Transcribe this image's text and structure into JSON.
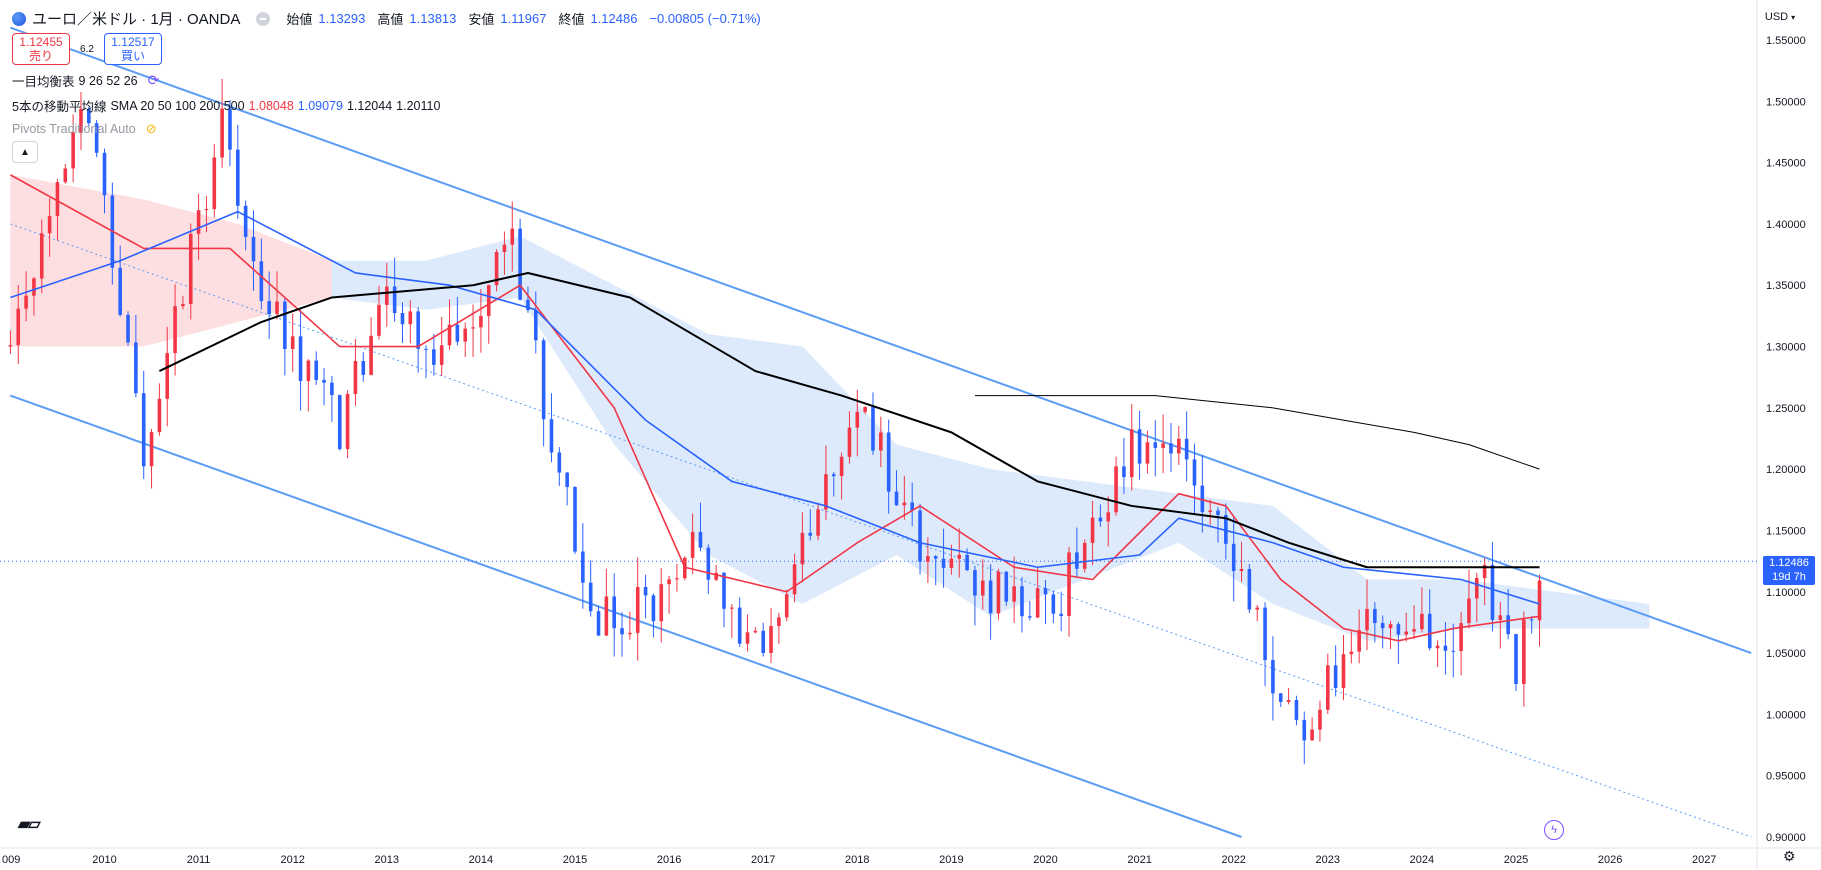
{
  "header": {
    "symbol_title": "ユーロ／米ドル · 1月 · OANDA",
    "ohlc": [
      {
        "label": "始値",
        "value": "1.13293"
      },
      {
        "label": "高値",
        "value": "1.13813"
      },
      {
        "label": "安値",
        "value": "1.11967"
      },
      {
        "label": "終値",
        "value": "1.12486"
      }
    ],
    "change": "−0.00805 (−0.71%)"
  },
  "trade": {
    "sell_price": "1.12455",
    "sell_label": "売り",
    "spread": "6.2",
    "buy_price": "1.12517",
    "buy_label": "買い"
  },
  "indicators": {
    "ichimoku_label": "一目均衡表",
    "ichimoku_params": "9 26 52 26",
    "ma_label": "5本の移動平均線",
    "ma_params": "SMA 20 50 100 200 500",
    "ma_values": [
      "1.08048",
      "1.09079",
      "1.12044",
      "1.20110"
    ],
    "pivots_label": "Pivots Traditional Auto"
  },
  "price_axis": {
    "currency": "USD",
    "last_price": "1.12486",
    "countdown": "19d 7h"
  },
  "colors": {
    "up": "#f23645",
    "down": "#2962ff",
    "sma20": "#f23645",
    "sma50": "#2962ff",
    "sma100": "#000000",
    "sma200": "#000000",
    "channel": "#5b9cf6",
    "kumo_bull": "#fdd9dc",
    "kumo_bear": "#d7e6fb"
  },
  "chart_data": {
    "type": "candlestick",
    "timeframe": "1M",
    "ylim": [
      0.9,
      1.56
    ],
    "yticks": [
      "1.55000",
      "1.50000",
      "1.45000",
      "1.40000",
      "1.35000",
      "1.30000",
      "1.25000",
      "1.20000",
      "1.15000",
      "1.10000",
      "1.05000",
      "1.00000",
      "0.95000",
      "0.90000"
    ],
    "xticks": [
      "009",
      "2010",
      "2011",
      "2012",
      "2013",
      "2014",
      "2015",
      "2016",
      "2017",
      "2018",
      "2019",
      "2020",
      "2021",
      "2022",
      "2023",
      "2024",
      "2025",
      "2026",
      "2027"
    ],
    "anchors": [
      [
        "2009-01",
        1.3
      ],
      [
        "2009-06",
        1.41
      ],
      [
        "2009-11",
        1.5
      ],
      [
        "2010-06",
        1.22
      ],
      [
        "2011-04",
        1.48
      ],
      [
        "2011-09",
        1.34
      ],
      [
        "2012-07",
        1.23
      ],
      [
        "2013-01",
        1.36
      ],
      [
        "2013-07",
        1.28
      ],
      [
        "2014-05",
        1.38
      ],
      [
        "2015-03",
        1.08
      ],
      [
        "2015-12",
        1.09
      ],
      [
        "2016-05",
        1.14
      ],
      [
        "2016-12",
        1.05
      ],
      [
        "2017-12",
        1.24
      ],
      [
        "2018-02",
        1.24
      ],
      [
        "2018-10",
        1.13
      ],
      [
        "2019-09",
        1.09
      ],
      [
        "2020-03",
        1.1
      ],
      [
        "2020-12",
        1.22
      ],
      [
        "2021-05",
        1.22
      ],
      [
        "2022-01",
        1.12
      ],
      [
        "2022-09",
        0.98
      ],
      [
        "2023-06",
        1.09
      ],
      [
        "2023-10",
        1.06
      ],
      [
        "2024-06",
        1.07
      ],
      [
        "2024-09",
        1.11
      ],
      [
        "2025-01",
        1.03
      ],
      [
        "2025-04",
        1.12
      ]
    ],
    "sma20": [
      [
        "2009-01",
        1.44
      ],
      [
        "2010-06",
        1.38
      ],
      [
        "2011-05",
        1.38
      ],
      [
        "2012-07",
        1.3
      ],
      [
        "2013-05",
        1.3
      ],
      [
        "2014-06",
        1.35
      ],
      [
        "2015-06",
        1.25
      ],
      [
        "2016-03",
        1.12
      ],
      [
        "2017-04",
        1.1
      ],
      [
        "2018-01",
        1.14
      ],
      [
        "2018-09",
        1.17
      ],
      [
        "2019-09",
        1.12
      ],
      [
        "2020-07",
        1.11
      ],
      [
        "2021-06",
        1.18
      ],
      [
        "2021-12",
        1.17
      ],
      [
        "2022-07",
        1.11
      ],
      [
        "2023-03",
        1.07
      ],
      [
        "2023-10",
        1.06
      ],
      [
        "2024-05",
        1.07
      ],
      [
        "2025-04",
        1.08
      ]
    ],
    "sma50": [
      [
        "2009-01",
        1.34
      ],
      [
        "2010-03",
        1.37
      ],
      [
        "2011-06",
        1.41
      ],
      [
        "2012-09",
        1.36
      ],
      [
        "2013-09",
        1.35
      ],
      [
        "2014-08",
        1.33
      ],
      [
        "2015-10",
        1.24
      ],
      [
        "2016-09",
        1.19
      ],
      [
        "2017-09",
        1.17
      ],
      [
        "2018-09",
        1.14
      ],
      [
        "2019-12",
        1.12
      ],
      [
        "2021-01",
        1.13
      ],
      [
        "2021-06",
        1.16
      ],
      [
        "2022-06",
        1.14
      ],
      [
        "2023-03",
        1.12
      ],
      [
        "2024-06",
        1.11
      ],
      [
        "2025-04",
        1.09
      ]
    ],
    "sma100": [
      [
        "2010-08",
        1.28
      ],
      [
        "2011-09",
        1.32
      ],
      [
        "2012-06",
        1.34
      ],
      [
        "2013-12",
        1.35
      ],
      [
        "2014-07",
        1.36
      ],
      [
        "2015-08",
        1.34
      ],
      [
        "2016-12",
        1.28
      ],
      [
        "2017-11",
        1.26
      ],
      [
        "2019-01",
        1.23
      ],
      [
        "2019-12",
        1.19
      ],
      [
        "2020-12",
        1.17
      ],
      [
        "2021-12",
        1.16
      ],
      [
        "2022-08",
        1.14
      ],
      [
        "2023-06",
        1.12
      ],
      [
        "2024-06",
        1.12
      ],
      [
        "2025-04",
        1.12
      ]
    ],
    "sma200": [
      [
        "2019-04",
        1.26
      ],
      [
        "2021-03",
        1.26
      ],
      [
        "2022-06",
        1.25
      ],
      [
        "2023-12",
        1.23
      ],
      [
        "2024-07",
        1.22
      ],
      [
        "2025-04",
        1.2
      ]
    ],
    "channel_upper": [
      [
        "2009-01",
        1.56
      ],
      [
        "2027-07",
        1.05
      ]
    ],
    "channel_lower": [
      [
        "2009-01",
        1.26
      ],
      [
        "2022-02",
        0.9
      ]
    ],
    "channel_mid": [
      [
        "2009-01",
        1.4
      ],
      [
        "2027-07",
        0.9
      ]
    ],
    "kumo": [
      [
        "2009-01",
        1.44,
        1.3
      ],
      [
        "2010-06",
        1.42,
        1.3
      ],
      [
        "2011-06",
        1.4,
        1.32
      ],
      [
        "2012-06",
        1.37,
        1.34
      ],
      [
        "2013-06",
        1.37,
        1.33
      ],
      [
        "2014-06",
        1.39,
        1.34
      ],
      [
        "2015-06",
        1.35,
        1.22
      ],
      [
        "2016-06",
        1.31,
        1.13
      ],
      [
        "2017-06",
        1.3,
        1.09
      ],
      [
        "2018-06",
        1.22,
        1.13
      ],
      [
        "2019-06",
        1.2,
        1.08
      ],
      [
        "2020-06",
        1.19,
        1.11
      ],
      [
        "2021-06",
        1.18,
        1.14
      ],
      [
        "2022-06",
        1.17,
        1.09
      ],
      [
        "2023-06",
        1.11,
        1.06
      ],
      [
        "2024-06",
        1.11,
        1.07
      ],
      [
        "2025-06",
        1.1,
        1.07
      ],
      [
        "2026-06",
        1.09,
        1.07
      ]
    ],
    "last_price": 1.12486
  }
}
